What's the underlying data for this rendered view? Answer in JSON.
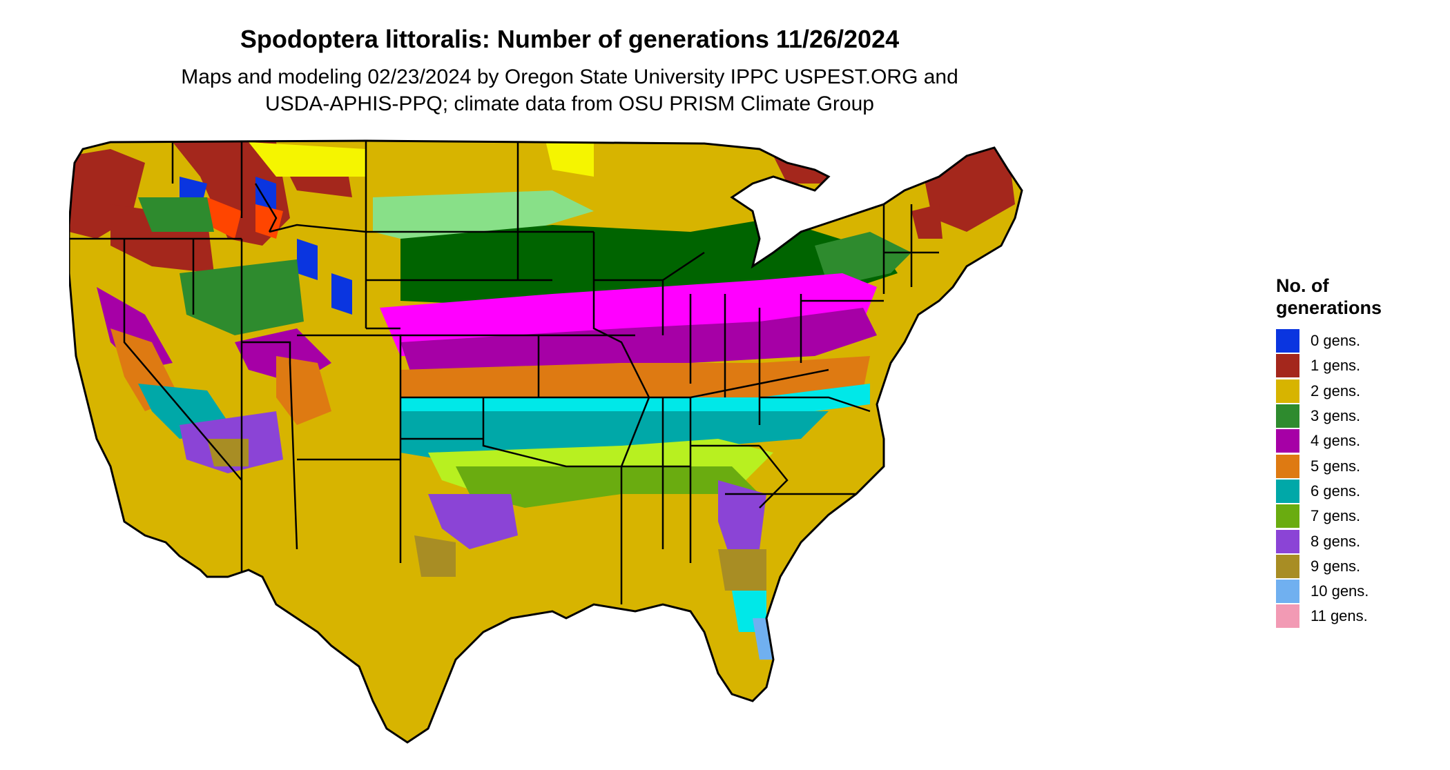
{
  "title": "Spodoptera littoralis: Number of generations 11/26/2024",
  "subtitle_line1": "Maps and modeling 02/23/2024 by Oregon State University IPPC USPEST.ORG and",
  "subtitle_line2": "USDA-APHIS-PPQ; climate data from OSU PRISM Climate Group",
  "legend": {
    "title_line1": "No. of",
    "title_line2": "generations",
    "items": [
      {
        "label": "0 gens.",
        "color": "#0a35e0"
      },
      {
        "label": "1 gens.",
        "color": "#a4271c"
      },
      {
        "label": "2 gens.",
        "color": "#d7b400"
      },
      {
        "label": "3 gens.",
        "color": "#2e8b2e"
      },
      {
        "label": "4 gens.",
        "color": "#a600a6"
      },
      {
        "label": "5 gens.",
        "color": "#de7a12"
      },
      {
        "label": "6 gens.",
        "color": "#00a8a8"
      },
      {
        "label": "7 gens.",
        "color": "#6aac10"
      },
      {
        "label": "8 gens.",
        "color": "#8b44d6"
      },
      {
        "label": "9 gens.",
        "color": "#a88d24"
      },
      {
        "label": "10 gens.",
        "color": "#70b0f0"
      },
      {
        "label": "11 gens.",
        "color": "#f29ab4"
      }
    ]
  },
  "region_colors": {
    "bright_yellow": "#f5f500",
    "light_green": "#88e088",
    "dark_green": "#006400",
    "magenta": "#ff00ff",
    "cyan": "#00e8e8",
    "orange_red": "#ff4500",
    "lime": "#b8f020"
  }
}
